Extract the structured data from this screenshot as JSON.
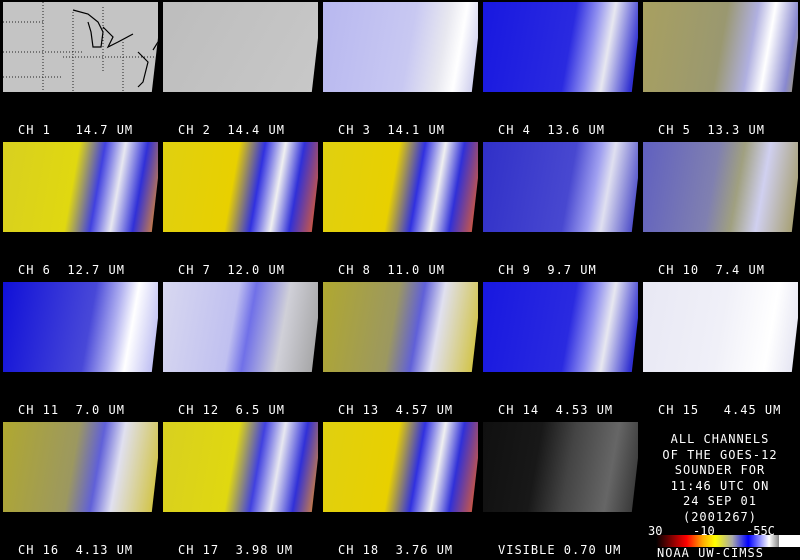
{
  "panels": [
    {
      "label": "CH 1   14.7 UM"
    },
    {
      "label": "CH 2  14.4 UM"
    },
    {
      "label": "CH 3  14.1 UM"
    },
    {
      "label": "CH 4  13.6 UM"
    },
    {
      "label": "CH 5  13.3 UM"
    },
    {
      "label": "CH 6  12.7 UM"
    },
    {
      "label": "CH 7  12.0 UM"
    },
    {
      "label": "CH 8  11.0 UM"
    },
    {
      "label": "CH 9  9.7 UM"
    },
    {
      "label": "CH 10  7.4 UM"
    },
    {
      "label": "CH 11  7.0 UM"
    },
    {
      "label": "CH 12  6.5 UM"
    },
    {
      "label": "CH 13  4.57 UM"
    },
    {
      "label": "CH 14  4.53 UM"
    },
    {
      "label": "CH 15   4.45 UM"
    },
    {
      "label": "CH 16  4.13 UM"
    },
    {
      "label": "CH 17  3.98 UM"
    },
    {
      "label": "CH 18  3.76 UM"
    },
    {
      "label": "VISIBLE 0.70 UM"
    }
  ],
  "info": {
    "lines": [
      "ALL CHANNELS",
      "OF THE GOES-12",
      "SOUNDER FOR",
      "11:46 UTC ON",
      "24 SEP 01",
      "(2001267)"
    ]
  },
  "colorbar": {
    "ticks": [
      "30",
      "-10",
      "-55C"
    ],
    "colors": [
      "#000000",
      "#ff0000",
      "#ffaa00",
      "#ffff00",
      "#aaaaaa",
      "#0000ff",
      "#ffffff"
    ]
  },
  "credit": "NOAA UW-CIMSS"
}
